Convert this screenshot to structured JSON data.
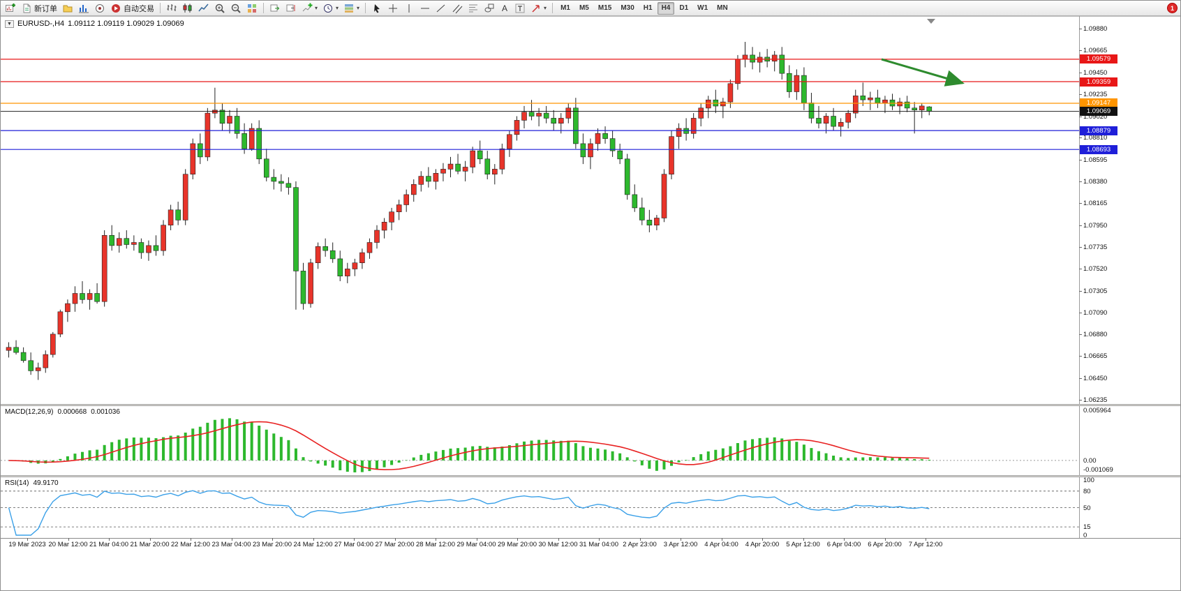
{
  "toolbar": {
    "new_order_label": "新订单",
    "autotrading_label": "自动交易",
    "timeframes": [
      "M1",
      "M5",
      "M15",
      "M30",
      "H1",
      "H4",
      "D1",
      "W1",
      "MN"
    ],
    "active_timeframe": "H4",
    "notification_count": "1"
  },
  "chart": {
    "collapse_marker": "▼",
    "title": "EURUSD-,H4",
    "ohlc_text": "1.09112 1.09119 1.09029 1.09069",
    "price_max": 1.0988,
    "price_min": 1.06235,
    "price_axis_labels": [
      "1.09880",
      "1.09665",
      "1.09450",
      "1.09235",
      "1.09020",
      "1.08810",
      "1.08595",
      "1.08380",
      "1.08165",
      "1.07950",
      "1.07735",
      "1.07520",
      "1.07305",
      "1.07090",
      "1.06880",
      "1.06665",
      "1.06450",
      "1.06235"
    ],
    "levels": [
      {
        "label": "1.09579",
        "value": 1.09579,
        "color": "#e81717",
        "name": "resistance-1"
      },
      {
        "label": "1.09359",
        "value": 1.09359,
        "color": "#e81717",
        "name": "resistance-2"
      },
      {
        "label": "1.09147",
        "value": 1.09147,
        "color": "#ff9500",
        "name": "pivot-line"
      },
      {
        "label": "1.09069",
        "value": 1.09069,
        "color": "#111111",
        "name": "current-price"
      },
      {
        "label": "1.08879",
        "value": 1.08879,
        "color": "#1f1fd9",
        "name": "support-1"
      },
      {
        "label": "1.08693",
        "value": 1.08693,
        "color": "#1f1fd9",
        "name": "support-2"
      }
    ]
  },
  "macd_panel": {
    "label": "MACD(12,26,9)",
    "main_value": "0.000668",
    "signal_value": "0.001036",
    "axis_labels": [
      "0.005964",
      "0.00",
      "-0.001069"
    ],
    "max": 0.005964,
    "min": -0.001069,
    "histogram_color": "#2db82d",
    "signal_color": "#e82222"
  },
  "rsi_panel": {
    "label": "RSI(14)",
    "value": "49.9170",
    "axis_labels": [
      "100",
      "80",
      "50",
      "15",
      "0"
    ],
    "level_lines": [
      80,
      50,
      15
    ],
    "line_color": "#3aa0e8"
  },
  "time_axis": [
    "19 Mar 2023",
    "20 Mar 12:00",
    "21 Mar 04:00",
    "21 Mar 20:00",
    "22 Mar 12:00",
    "23 Mar 04:00",
    "23 Mar 20:00",
    "24 Mar 12:00",
    "27 Mar 04:00",
    "27 Mar 20:00",
    "28 Mar 12:00",
    "29 Mar 04:00",
    "29 Mar 20:00",
    "30 Mar 12:00",
    "31 Mar 04:00",
    "2 Apr 23:00",
    "3 Apr 12:00",
    "4 Apr 04:00",
    "4 Apr 20:00",
    "5 Apr 12:00",
    "6 Apr 04:00",
    "6 Apr 20:00",
    "7 Apr 12:00"
  ],
  "annotation": {
    "type": "trend-arrow",
    "color": "#2e8b2e"
  },
  "chart_data": {
    "type": "candlestick",
    "symbol": "EURUSD",
    "period": "H4",
    "up_color": "#e8342a",
    "down_color": "#2db82d",
    "wick_color": "#222222",
    "price_range": [
      1.06235,
      1.0988
    ],
    "horizontal_levels": [
      1.09579,
      1.09359,
      1.09147,
      1.09069,
      1.08879,
      1.08693
    ],
    "last_candle": {
      "open": "1.09112",
      "high": "1.09119",
      "low": "1.09029",
      "close": "1.09069"
    },
    "indicators": [
      {
        "type": "MACD",
        "params": [
          12,
          26,
          9
        ],
        "current_main": 0.000668,
        "current_signal": 0.001036,
        "scale": [
          -0.001069,
          0.005964
        ]
      },
      {
        "type": "RSI",
        "params": [
          14
        ],
        "current": 49.917,
        "scale": [
          0,
          100
        ],
        "levels": [
          80,
          50,
          15
        ]
      }
    ],
    "candles": [
      [
        1.0672,
        1.068,
        1.0665,
        1.0675
      ],
      [
        1.0675,
        1.0682,
        1.0668,
        1.067
      ],
      [
        1.067,
        1.0675,
        1.066,
        1.0662
      ],
      [
        1.0662,
        1.067,
        1.0648,
        1.0652
      ],
      [
        1.0652,
        1.066,
        1.0643,
        1.0655
      ],
      [
        1.0655,
        1.0672,
        1.065,
        1.0668
      ],
      [
        1.0668,
        1.069,
        1.0665,
        1.0688
      ],
      [
        1.0688,
        1.0712,
        1.0685,
        1.071
      ],
      [
        1.071,
        1.0722,
        1.07,
        1.0718
      ],
      [
        1.0718,
        1.0735,
        1.071,
        1.0728
      ],
      [
        1.0728,
        1.074,
        1.0718,
        1.0722
      ],
      [
        1.0722,
        1.0732,
        1.0712,
        1.0728
      ],
      [
        1.0728,
        1.0738,
        1.0718,
        1.072
      ],
      [
        1.072,
        1.079,
        1.0715,
        1.0785
      ],
      [
        1.0785,
        1.0795,
        1.077,
        1.0775
      ],
      [
        1.0775,
        1.0788,
        1.0768,
        1.0782
      ],
      [
        1.0782,
        1.079,
        1.0772,
        1.0776
      ],
      [
        1.0776,
        1.0785,
        1.077,
        1.0778
      ],
      [
        1.0778,
        1.0782,
        1.0762,
        1.0768
      ],
      [
        1.0768,
        1.078,
        1.076,
        1.0775
      ],
      [
        1.0775,
        1.0785,
        1.0765,
        1.077
      ],
      [
        1.077,
        1.08,
        1.0765,
        1.0795
      ],
      [
        1.0795,
        1.0815,
        1.079,
        1.081
      ],
      [
        1.081,
        1.0818,
        1.0795,
        1.08
      ],
      [
        1.08,
        1.085,
        1.0795,
        1.0845
      ],
      [
        1.0845,
        1.088,
        1.084,
        1.0875
      ],
      [
        1.0875,
        1.0885,
        1.0855,
        1.0862
      ],
      [
        1.0862,
        1.091,
        1.0858,
        1.0905
      ],
      [
        1.0905,
        1.093,
        1.09,
        1.0908
      ],
      [
        1.0908,
        1.0915,
        1.0888,
        1.0895
      ],
      [
        1.0895,
        1.0908,
        1.0885,
        1.0902
      ],
      [
        1.0902,
        1.091,
        1.088,
        1.0885
      ],
      [
        1.0885,
        1.0895,
        1.0865,
        1.087
      ],
      [
        1.087,
        1.0895,
        1.0868,
        1.089
      ],
      [
        1.089,
        1.0898,
        1.0855,
        1.086
      ],
      [
        1.086,
        1.087,
        1.0838,
        1.0842
      ],
      [
        1.0842,
        1.085,
        1.083,
        1.0838
      ],
      [
        1.0838,
        1.0845,
        1.0828,
        1.0836
      ],
      [
        1.0836,
        1.0842,
        1.0825,
        1.0832
      ],
      [
        1.0832,
        1.0838,
        1.0712,
        1.075
      ],
      [
        1.075,
        1.0758,
        1.0712,
        1.0718
      ],
      [
        1.0718,
        1.0762,
        1.0714,
        1.0758
      ],
      [
        1.0758,
        1.0778,
        1.0752,
        1.0774
      ],
      [
        1.0774,
        1.0782,
        1.0764,
        1.077
      ],
      [
        1.077,
        1.0778,
        1.0758,
        1.0762
      ],
      [
        1.0762,
        1.077,
        1.074,
        1.0745
      ],
      [
        1.0745,
        1.0758,
        1.0738,
        1.0752
      ],
      [
        1.0752,
        1.0762,
        1.0745,
        1.0758
      ],
      [
        1.0758,
        1.0772,
        1.0752,
        1.0768
      ],
      [
        1.0768,
        1.0782,
        1.0762,
        1.0778
      ],
      [
        1.0778,
        1.0795,
        1.0772,
        1.079
      ],
      [
        1.079,
        1.0802,
        1.0782,
        1.0798
      ],
      [
        1.0798,
        1.0812,
        1.079,
        1.0808
      ],
      [
        1.0808,
        1.082,
        1.08,
        1.0815
      ],
      [
        1.0815,
        1.083,
        1.0808,
        1.0825
      ],
      [
        1.0825,
        1.084,
        1.0818,
        1.0835
      ],
      [
        1.0835,
        1.0848,
        1.0828,
        1.0843
      ],
      [
        1.0843,
        1.0852,
        1.0832,
        1.0838
      ],
      [
        1.0838,
        1.085,
        1.083,
        1.0846
      ],
      [
        1.0846,
        1.0856,
        1.0838,
        1.085
      ],
      [
        1.085,
        1.0862,
        1.0842,
        1.0855
      ],
      [
        1.0855,
        1.0865,
        1.0845,
        1.0848
      ],
      [
        1.0848,
        1.0858,
        1.0838,
        1.0852
      ],
      [
        1.0852,
        1.0872,
        1.0846,
        1.0868
      ],
      [
        1.0868,
        1.0878,
        1.0855,
        1.086
      ],
      [
        1.086,
        1.0868,
        1.084,
        1.0845
      ],
      [
        1.0845,
        1.0855,
        1.0835,
        1.085
      ],
      [
        1.085,
        1.0875,
        1.0845,
        1.087
      ],
      [
        1.087,
        1.0888,
        1.0862,
        1.0884
      ],
      [
        1.0884,
        1.0902,
        1.0878,
        1.0898
      ],
      [
        1.0898,
        1.0912,
        1.089,
        1.0906
      ],
      [
        1.0906,
        1.0918,
        1.0898,
        1.0902
      ],
      [
        1.0902,
        1.091,
        1.0892,
        1.0905
      ],
      [
        1.0905,
        1.0912,
        1.0895,
        1.09
      ],
      [
        1.09,
        1.0908,
        1.0888,
        1.0895
      ],
      [
        1.0895,
        1.0905,
        1.0885,
        1.09
      ],
      [
        1.09,
        1.0915,
        1.0895,
        1.091
      ],
      [
        1.091,
        1.092,
        1.087,
        1.0875
      ],
      [
        1.0875,
        1.0885,
        1.0855,
        1.0862
      ],
      [
        1.0862,
        1.088,
        1.085,
        1.0875
      ],
      [
        1.0875,
        1.089,
        1.0868,
        1.0885
      ],
      [
        1.0885,
        1.0892,
        1.0875,
        1.088
      ],
      [
        1.088,
        1.0888,
        1.0862,
        1.0868
      ],
      [
        1.0868,
        1.0875,
        1.0855,
        1.086
      ],
      [
        1.086,
        1.0865,
        1.082,
        1.0825
      ],
      [
        1.0825,
        1.0835,
        1.0808,
        1.0812
      ],
      [
        1.0812,
        1.0822,
        1.0795,
        1.08
      ],
      [
        1.08,
        1.081,
        1.0788,
        1.0795
      ],
      [
        1.0795,
        1.0805,
        1.079,
        1.0802
      ],
      [
        1.0802,
        1.085,
        1.0798,
        1.0845
      ],
      [
        1.0845,
        1.0888,
        1.084,
        1.0882
      ],
      [
        1.0882,
        1.0895,
        1.087,
        1.089
      ],
      [
        1.089,
        1.09,
        1.0878,
        1.0885
      ],
      [
        1.0885,
        1.0905,
        1.088,
        1.09
      ],
      [
        1.09,
        1.0915,
        1.0892,
        1.091
      ],
      [
        1.091,
        1.0922,
        1.09,
        1.0918
      ],
      [
        1.0918,
        1.0928,
        1.0905,
        1.0912
      ],
      [
        1.0912,
        1.092,
        1.09,
        1.0916
      ],
      [
        1.0916,
        1.0938,
        1.091,
        1.0934
      ],
      [
        1.0934,
        1.0962,
        1.0928,
        1.0958
      ],
      [
        1.0958,
        1.0975,
        1.095,
        1.0962
      ],
      [
        1.0962,
        1.097,
        1.0948,
        1.0955
      ],
      [
        1.0955,
        1.0965,
        1.0945,
        1.096
      ],
      [
        1.096,
        1.0968,
        1.095,
        1.0956
      ],
      [
        1.0956,
        1.0966,
        1.0946,
        1.0962
      ],
      [
        1.0962,
        1.097,
        1.0938,
        1.0944
      ],
      [
        1.0944,
        1.0952,
        1.092,
        1.0926
      ],
      [
        1.0926,
        1.0948,
        1.0918,
        1.0942
      ],
      [
        1.0942,
        1.095,
        1.0908,
        1.0915
      ],
      [
        1.0915,
        1.0925,
        1.0895,
        1.09
      ],
      [
        1.09,
        1.0912,
        1.089,
        1.0895
      ],
      [
        1.0895,
        1.0905,
        1.0885,
        1.0902
      ],
      [
        1.0902,
        1.091,
        1.0888,
        1.0892
      ],
      [
        1.0892,
        1.09,
        1.0882,
        1.0896
      ],
      [
        1.0896,
        1.0908,
        1.089,
        1.0905
      ],
      [
        1.0905,
        1.0928,
        1.09,
        1.0922
      ],
      [
        1.0922,
        1.0935,
        1.0912,
        1.0918
      ],
      [
        1.0918,
        1.0926,
        1.0908,
        1.092
      ],
      [
        1.092,
        1.0928,
        1.091,
        1.0915
      ],
      [
        1.0915,
        1.0922,
        1.0905,
        1.0918
      ],
      [
        1.0918,
        1.0924,
        1.0908,
        1.0912
      ],
      [
        1.0912,
        1.092,
        1.0904,
        1.0916
      ],
      [
        1.0916,
        1.0922,
        1.0906,
        1.091
      ],
      [
        1.091,
        1.0916,
        1.0885,
        1.0908
      ],
      [
        1.0908,
        1.0915,
        1.09,
        1.0912
      ],
      [
        1.09112,
        1.09119,
        1.09029,
        1.09069
      ]
    ]
  }
}
